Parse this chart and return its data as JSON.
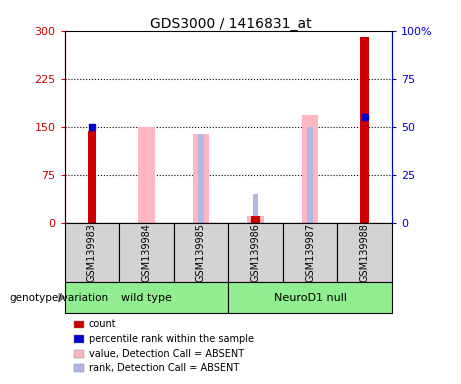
{
  "title": "GDS3000 / 1416831_at",
  "samples": [
    "GSM139983",
    "GSM139984",
    "GSM139985",
    "GSM139986",
    "GSM139987",
    "GSM139988"
  ],
  "count_values": [
    143,
    null,
    null,
    10,
    null,
    290
  ],
  "percentile_rank_values": [
    50,
    null,
    null,
    null,
    null,
    55
  ],
  "absent_value_values": [
    null,
    150,
    138,
    10,
    168,
    null
  ],
  "absent_rank_values": [
    null,
    null,
    46,
    15,
    50,
    null
  ],
  "ylim_left": [
    0,
    300
  ],
  "ylim_right": [
    0,
    100
  ],
  "yticks_left": [
    0,
    75,
    150,
    225,
    300
  ],
  "yticks_right": [
    0,
    25,
    50,
    75,
    100
  ],
  "ytick_labels_left": [
    "0",
    "75",
    "150",
    "225",
    "300"
  ],
  "ytick_labels_right": [
    "0",
    "25",
    "50",
    "75",
    "100%"
  ],
  "left_axis_color": "#cc0000",
  "right_axis_color": "#0000cc",
  "count_color": "#cc0000",
  "percentile_color": "#0000cc",
  "absent_value_color": "#FFB6C1",
  "absent_rank_color": "#b0b8e8",
  "bg_color": "#d3d3d3",
  "group_color": "#90EE90",
  "genotype_label": "genotype/variation",
  "wt_label": "wild type",
  "nd_label": "NeuroD1 null",
  "legend_items": [
    {
      "color": "#cc0000",
      "label": "count"
    },
    {
      "color": "#0000cc",
      "label": "percentile rank within the sample"
    },
    {
      "color": "#FFB6C1",
      "label": "value, Detection Call = ABSENT"
    },
    {
      "color": "#b0b8e8",
      "label": "rank, Detection Call = ABSENT"
    }
  ]
}
